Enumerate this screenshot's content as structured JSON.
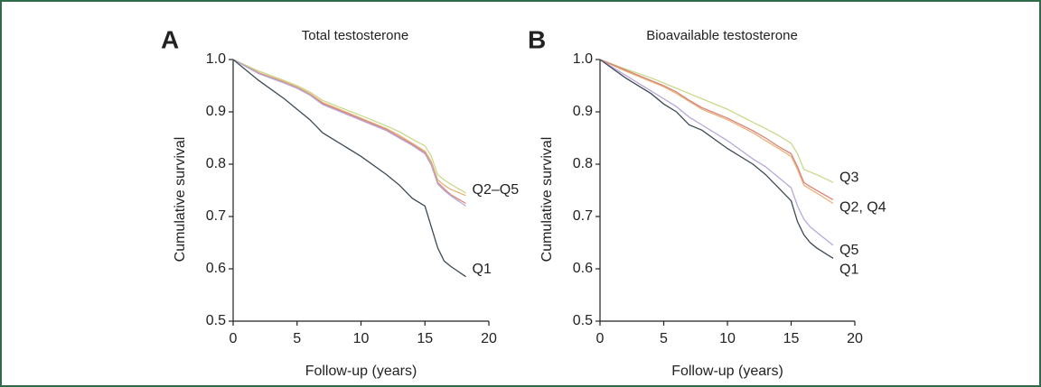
{
  "chart_data": [
    {
      "type": "line",
      "panel_label": "A",
      "title": "Total testosterone",
      "x_label": "Follow-up (years)",
      "y_label": "Cumulative survival",
      "x": [
        0,
        2,
        4,
        5,
        6,
        7,
        8,
        10,
        12,
        13,
        14,
        15,
        15.5,
        16,
        16.5,
        17,
        18.2
      ],
      "series": [
        {
          "color": "#e8b27a",
          "values": [
            1,
            0.975,
            0.958,
            0.948,
            0.935,
            0.918,
            0.908,
            0.888,
            0.868,
            0.855,
            0.84,
            0.825,
            0.805,
            0.77,
            0.76,
            0.752,
            0.74
          ]
        },
        {
          "color": "#c9d98a",
          "values": [
            1,
            0.978,
            0.96,
            0.95,
            0.938,
            0.922,
            0.912,
            0.893,
            0.873,
            0.862,
            0.848,
            0.835,
            0.815,
            0.78,
            0.77,
            0.762,
            0.745
          ]
        },
        {
          "color": "#d9857a",
          "values": [
            1,
            0.974,
            0.956,
            0.946,
            0.933,
            0.916,
            0.906,
            0.886,
            0.866,
            0.852,
            0.838,
            0.822,
            0.8,
            0.765,
            0.753,
            0.742,
            0.725
          ]
        },
        {
          "color": "#b7a8d9",
          "values": [
            1,
            0.973,
            0.955,
            0.945,
            0.932,
            0.914,
            0.904,
            0.884,
            0.864,
            0.85,
            0.836,
            0.82,
            0.798,
            0.762,
            0.75,
            0.74,
            0.72
          ]
        },
        {
          "color": "#3d4a55",
          "values": [
            1,
            0.96,
            0.925,
            0.905,
            0.885,
            0.86,
            0.845,
            0.815,
            0.78,
            0.76,
            0.735,
            0.72,
            0.68,
            0.64,
            0.615,
            0.605,
            0.585
          ]
        }
      ],
      "annotations": [
        "Q2–Q5",
        "Q1"
      ],
      "xlim": [
        0,
        20
      ],
      "xticks": [
        0,
        5,
        10,
        15,
        20
      ],
      "ylim": [
        0.5,
        1
      ],
      "yticks": [
        0.5,
        0.6,
        0.7,
        0.8,
        0.9,
        {
          "value": 1,
          "label": "1.0"
        }
      ]
    },
    {
      "type": "line",
      "panel_label": "B",
      "title": "Bioavailable testosterone",
      "x_label": "Follow-up (years)",
      "y_label": "Cumulative survival",
      "x": [
        0,
        2,
        4,
        5,
        6,
        7,
        8,
        10,
        12,
        13,
        14,
        15,
        15.5,
        16,
        16.5,
        17,
        18.3
      ],
      "series": [
        {
          "color": "#c9d98a",
          "values": [
            1,
            0.982,
            0.965,
            0.955,
            0.945,
            0.935,
            0.925,
            0.905,
            0.88,
            0.868,
            0.855,
            0.84,
            0.82,
            0.79,
            0.785,
            0.78,
            0.765
          ]
        },
        {
          "color": "#e8b27a",
          "values": [
            1,
            0.978,
            0.958,
            0.948,
            0.935,
            0.92,
            0.905,
            0.885,
            0.86,
            0.845,
            0.83,
            0.815,
            0.79,
            0.76,
            0.752,
            0.745,
            0.725
          ]
        },
        {
          "color": "#d9857a",
          "values": [
            1,
            0.98,
            0.96,
            0.95,
            0.938,
            0.922,
            0.908,
            0.888,
            0.864,
            0.85,
            0.834,
            0.82,
            0.795,
            0.765,
            0.757,
            0.75,
            0.732
          ]
        },
        {
          "color": "#b7a8d9",
          "values": [
            1,
            0.97,
            0.94,
            0.925,
            0.91,
            0.89,
            0.875,
            0.845,
            0.81,
            0.795,
            0.775,
            0.755,
            0.72,
            0.695,
            0.68,
            0.67,
            0.645
          ]
        },
        {
          "color": "#3d4a55",
          "values": [
            1,
            0.965,
            0.935,
            0.915,
            0.9,
            0.875,
            0.865,
            0.83,
            0.8,
            0.78,
            0.755,
            0.73,
            0.69,
            0.665,
            0.65,
            0.64,
            0.62
          ]
        }
      ],
      "annotations": [
        "Q3",
        "Q2, Q4",
        "Q5",
        "Q1"
      ],
      "xlim": [
        0,
        20
      ],
      "xticks": [
        0,
        5,
        10,
        15,
        20
      ],
      "ylim": [
        0.5,
        1
      ],
      "yticks": [
        0.5,
        0.6,
        0.7,
        0.8,
        0.9,
        {
          "value": 1,
          "label": "1.0"
        }
      ]
    }
  ]
}
